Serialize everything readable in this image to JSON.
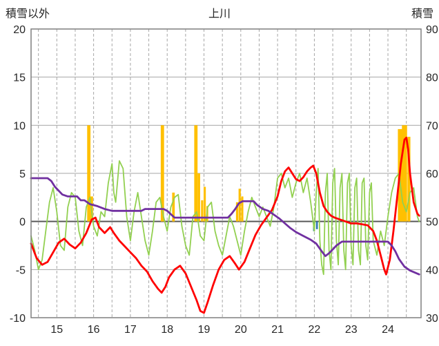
{
  "chart_data": {
    "type": "line",
    "title": "上川",
    "left_axis": {
      "label": "積雪以外",
      "min": -10,
      "max": 20,
      "ticks": [
        20,
        15,
        10,
        5,
        0,
        -5,
        -10
      ]
    },
    "right_axis": {
      "label": "積雪",
      "min": 30,
      "max": 90,
      "ticks": [
        90,
        80,
        70,
        60,
        50,
        40,
        30
      ]
    },
    "x_axis": {
      "min": 14.3,
      "max": 24.9,
      "ticks": [
        15,
        16,
        17,
        18,
        19,
        20,
        21,
        22,
        23,
        24
      ],
      "minor_grid_step": 0.5
    },
    "style": {
      "grid_color": "#A6A6A6",
      "border_color": "#7F7F7F",
      "zero_line_color": "#595959",
      "background": "#FFFFFF"
    },
    "series": [
      {
        "name": "orange-bars",
        "type": "bar",
        "color": "#FFC000",
        "axis": "left",
        "bars": [
          {
            "x": 15.87,
            "h": 10.0,
            "w": 0.09
          },
          {
            "x": 15.95,
            "h": 2.6,
            "w": 0.07
          },
          {
            "x": 17.87,
            "h": 10.0,
            "w": 0.09
          },
          {
            "x": 18.17,
            "h": 3.0,
            "w": 0.07
          },
          {
            "x": 18.78,
            "h": 10.0,
            "w": 0.09
          },
          {
            "x": 18.86,
            "h": 5.0,
            "w": 0.07
          },
          {
            "x": 18.95,
            "h": 2.2,
            "w": 0.06
          },
          {
            "x": 19.02,
            "h": 3.6,
            "w": 0.06
          },
          {
            "x": 19.09,
            "h": 1.6,
            "w": 0.05
          },
          {
            "x": 19.9,
            "h": 2.0,
            "w": 0.06
          },
          {
            "x": 19.97,
            "h": 3.4,
            "w": 0.06
          },
          {
            "x": 20.04,
            "h": 2.6,
            "w": 0.06
          },
          {
            "x": 24.33,
            "h": 9.6,
            "w": 0.12
          },
          {
            "x": 24.45,
            "h": 10.0,
            "w": 0.14
          },
          {
            "x": 24.57,
            "h": 8.8,
            "w": 0.08
          }
        ]
      },
      {
        "name": "blue-bars",
        "type": "bar",
        "color": "#2E75B6",
        "axis": "left",
        "bars": [
          {
            "x": 21.99,
            "h": -1.0,
            "w": 0.05
          },
          {
            "x": 22.07,
            "h": -0.8,
            "w": 0.05
          }
        ]
      },
      {
        "name": "green-line",
        "type": "line",
        "color": "#92D050",
        "width": 1.8,
        "points": [
          [
            14.3,
            -1.5
          ],
          [
            14.4,
            -3
          ],
          [
            14.5,
            -5
          ],
          [
            14.6,
            -4
          ],
          [
            14.7,
            -1
          ],
          [
            14.8,
            2
          ],
          [
            14.9,
            3.5
          ],
          [
            15.0,
            1
          ],
          [
            15.1,
            -2.5
          ],
          [
            15.2,
            -3
          ],
          [
            15.3,
            1.5
          ],
          [
            15.4,
            3
          ],
          [
            15.5,
            2.5
          ],
          [
            15.6,
            -1
          ],
          [
            15.7,
            -2.5
          ],
          [
            15.8,
            1.5
          ],
          [
            15.9,
            2.5
          ],
          [
            16.0,
            -0.5
          ],
          [
            16.1,
            -1.5
          ],
          [
            16.2,
            1
          ],
          [
            16.3,
            0.5
          ],
          [
            16.4,
            4
          ],
          [
            16.5,
            6
          ],
          [
            16.55,
            3
          ],
          [
            16.6,
            2
          ],
          [
            16.7,
            6.3
          ],
          [
            16.8,
            5.5
          ],
          [
            16.9,
            0.5
          ],
          [
            17.0,
            -2
          ],
          [
            17.1,
            1
          ],
          [
            17.2,
            3
          ],
          [
            17.3,
            0.5
          ],
          [
            17.4,
            -2
          ],
          [
            17.5,
            -3.5
          ],
          [
            17.6,
            -1
          ],
          [
            17.7,
            2
          ],
          [
            17.8,
            2.5
          ],
          [
            17.9,
            0.5
          ],
          [
            18.0,
            -1
          ],
          [
            18.1,
            1.5
          ],
          [
            18.2,
            2.5
          ],
          [
            18.3,
            2.8
          ],
          [
            18.4,
            -0.5
          ],
          [
            18.5,
            -2.5
          ],
          [
            18.6,
            -3.5
          ],
          [
            18.7,
            0.5
          ],
          [
            18.8,
            1
          ],
          [
            18.9,
            -1.5
          ],
          [
            19.0,
            -2
          ],
          [
            19.1,
            1.5
          ],
          [
            19.2,
            2
          ],
          [
            19.3,
            -1
          ],
          [
            19.4,
            -2.5
          ],
          [
            19.5,
            -3.5
          ],
          [
            19.6,
            -1.5
          ],
          [
            19.7,
            0.5
          ],
          [
            19.8,
            -0.5
          ],
          [
            19.9,
            -2
          ],
          [
            20.0,
            -3.5
          ],
          [
            20.1,
            -1
          ],
          [
            20.2,
            1
          ],
          [
            20.3,
            2.5
          ],
          [
            20.4,
            1.5
          ],
          [
            20.5,
            0.5
          ],
          [
            20.6,
            1.5
          ],
          [
            20.7,
            0.5
          ],
          [
            20.8,
            -0.5
          ],
          [
            20.9,
            1.5
          ],
          [
            21.0,
            4.5
          ],
          [
            21.1,
            5
          ],
          [
            21.2,
            3.5
          ],
          [
            21.3,
            4.5
          ],
          [
            21.4,
            2.5
          ],
          [
            21.5,
            4
          ],
          [
            21.6,
            5
          ],
          [
            21.7,
            3
          ],
          [
            21.8,
            4.5
          ],
          [
            21.9,
            2
          ],
          [
            22.0,
            -1
          ],
          [
            22.05,
            3
          ],
          [
            22.1,
            5.5
          ],
          [
            22.15,
            -2
          ],
          [
            22.2,
            -4.5
          ],
          [
            22.25,
            -5.5
          ],
          [
            22.3,
            3
          ],
          [
            22.35,
            5
          ],
          [
            22.4,
            -3
          ],
          [
            22.45,
            -5
          ],
          [
            22.5,
            4
          ],
          [
            22.55,
            5.5
          ],
          [
            22.6,
            -2
          ],
          [
            22.65,
            -4.5
          ],
          [
            22.7,
            3.5
          ],
          [
            22.75,
            5
          ],
          [
            22.8,
            -3
          ],
          [
            22.85,
            -5
          ],
          [
            22.9,
            4
          ],
          [
            22.95,
            5
          ],
          [
            23.0,
            -2.5
          ],
          [
            23.05,
            -4.5
          ],
          [
            23.1,
            3.5
          ],
          [
            23.15,
            4.5
          ],
          [
            23.2,
            -3
          ],
          [
            23.25,
            -4.5
          ],
          [
            23.3,
            4
          ],
          [
            23.35,
            4.5
          ],
          [
            23.4,
            -2.5
          ],
          [
            23.45,
            -4
          ],
          [
            23.5,
            3
          ],
          [
            23.55,
            4
          ],
          [
            23.6,
            -2
          ],
          [
            23.7,
            -3.5
          ],
          [
            23.8,
            -1
          ],
          [
            23.9,
            -2.5
          ],
          [
            24.0,
            0.5
          ],
          [
            24.1,
            3
          ],
          [
            24.2,
            4.5
          ],
          [
            24.3,
            5
          ],
          [
            24.4,
            2
          ],
          [
            24.5,
            1
          ],
          [
            24.6,
            3
          ],
          [
            24.7,
            3.5
          ],
          [
            24.8,
            0.5
          ],
          [
            24.85,
            0
          ]
        ]
      },
      {
        "name": "red-line",
        "type": "line",
        "color": "#FF0000",
        "width": 2.8,
        "points": [
          [
            14.3,
            -2.3
          ],
          [
            14.45,
            -3.8
          ],
          [
            14.6,
            -4.5
          ],
          [
            14.75,
            -4.2
          ],
          [
            14.9,
            -3.2
          ],
          [
            15.05,
            -2.2
          ],
          [
            15.2,
            -1.8
          ],
          [
            15.35,
            -2.4
          ],
          [
            15.5,
            -2.8
          ],
          [
            15.65,
            -2.2
          ],
          [
            15.8,
            -1.2
          ],
          [
            15.95,
            0.2
          ],
          [
            16.05,
            0.4
          ],
          [
            16.15,
            -0.6
          ],
          [
            16.3,
            -1.2
          ],
          [
            16.45,
            -0.6
          ],
          [
            16.55,
            -1.2
          ],
          [
            16.7,
            -2
          ],
          [
            16.85,
            -2.6
          ],
          [
            17.0,
            -3.2
          ],
          [
            17.15,
            -3.8
          ],
          [
            17.3,
            -4.6
          ],
          [
            17.45,
            -5.2
          ],
          [
            17.6,
            -6.2
          ],
          [
            17.75,
            -7
          ],
          [
            17.85,
            -7.4
          ],
          [
            17.95,
            -6.8
          ],
          [
            18.05,
            -5.8
          ],
          [
            18.2,
            -5
          ],
          [
            18.35,
            -4.6
          ],
          [
            18.5,
            -5.4
          ],
          [
            18.65,
            -6.8
          ],
          [
            18.8,
            -8.2
          ],
          [
            18.9,
            -9.3
          ],
          [
            19.0,
            -9.5
          ],
          [
            19.1,
            -8.4
          ],
          [
            19.25,
            -6.6
          ],
          [
            19.4,
            -5
          ],
          [
            19.55,
            -4
          ],
          [
            19.7,
            -3.6
          ],
          [
            19.85,
            -4.4
          ],
          [
            19.95,
            -5
          ],
          [
            20.1,
            -4.2
          ],
          [
            20.25,
            -2.8
          ],
          [
            20.4,
            -1.4
          ],
          [
            20.55,
            -0.4
          ],
          [
            20.7,
            0.4
          ],
          [
            20.85,
            1.2
          ],
          [
            21.0,
            2.6
          ],
          [
            21.1,
            4.2
          ],
          [
            21.2,
            5.2
          ],
          [
            21.3,
            5.6
          ],
          [
            21.4,
            5
          ],
          [
            21.5,
            4.4
          ],
          [
            21.6,
            4.2
          ],
          [
            21.7,
            4.6
          ],
          [
            21.8,
            5.2
          ],
          [
            21.9,
            5.6
          ],
          [
            21.97,
            5.8
          ],
          [
            22.05,
            5
          ],
          [
            22.15,
            3
          ],
          [
            22.25,
            1.6
          ],
          [
            22.35,
            1
          ],
          [
            22.45,
            0.6
          ],
          [
            22.55,
            0.4
          ],
          [
            22.7,
            0.2
          ],
          [
            22.85,
            0
          ],
          [
            23.0,
            -0.2
          ],
          [
            23.15,
            -0.2
          ],
          [
            23.3,
            -0.3
          ],
          [
            23.45,
            -0.4
          ],
          [
            23.6,
            -1
          ],
          [
            23.7,
            -2
          ],
          [
            23.8,
            -3.5
          ],
          [
            23.9,
            -5
          ],
          [
            23.95,
            -5.5
          ],
          [
            24.05,
            -4
          ],
          [
            24.15,
            -1
          ],
          [
            24.25,
            2.5
          ],
          [
            24.35,
            6
          ],
          [
            24.45,
            8.5
          ],
          [
            24.5,
            8.7
          ],
          [
            24.55,
            7.5
          ],
          [
            24.6,
            5
          ],
          [
            24.7,
            2
          ],
          [
            24.8,
            0.8
          ],
          [
            24.85,
            0.6
          ]
        ]
      },
      {
        "name": "purple-line",
        "type": "line",
        "color": "#7030A0",
        "width": 2.8,
        "points": [
          [
            14.3,
            4.5
          ],
          [
            14.75,
            4.5
          ],
          [
            14.85,
            4.2
          ],
          [
            14.95,
            3.6
          ],
          [
            15.05,
            3.2
          ],
          [
            15.15,
            2.8
          ],
          [
            15.3,
            2.6
          ],
          [
            15.55,
            2.6
          ],
          [
            15.65,
            2.2
          ],
          [
            15.75,
            2.2
          ],
          [
            15.9,
            1.8
          ],
          [
            16.1,
            1.6
          ],
          [
            16.3,
            1.3
          ],
          [
            16.5,
            1.1
          ],
          [
            17.3,
            1.1
          ],
          [
            17.4,
            1.3
          ],
          [
            17.9,
            1.3
          ],
          [
            18.0,
            1.1
          ],
          [
            18.2,
            0.4
          ],
          [
            19.65,
            0.4
          ],
          [
            19.75,
            0.8
          ],
          [
            19.85,
            1.3
          ],
          [
            19.95,
            1.9
          ],
          [
            20.05,
            2.1
          ],
          [
            20.35,
            2.1
          ],
          [
            20.45,
            1.7
          ],
          [
            20.6,
            1.3
          ],
          [
            20.75,
            1.1
          ],
          [
            20.9,
            0.7
          ],
          [
            21.05,
            0.3
          ],
          [
            21.2,
            -0.2
          ],
          [
            21.35,
            -0.7
          ],
          [
            21.5,
            -1.1
          ],
          [
            21.7,
            -1.5
          ],
          [
            21.9,
            -1.9
          ],
          [
            22.05,
            -2.3
          ],
          [
            22.2,
            -3.1
          ],
          [
            22.3,
            -3.6
          ],
          [
            22.4,
            -3.3
          ],
          [
            22.5,
            -2.9
          ],
          [
            22.6,
            -2.5
          ],
          [
            22.75,
            -2.1
          ],
          [
            23.0,
            -2.1
          ],
          [
            24.0,
            -2.1
          ],
          [
            24.1,
            -2.5
          ],
          [
            24.2,
            -3.1
          ],
          [
            24.3,
            -3.9
          ],
          [
            24.45,
            -4.7
          ],
          [
            24.6,
            -5.1
          ],
          [
            24.85,
            -5.5
          ]
        ]
      }
    ]
  }
}
